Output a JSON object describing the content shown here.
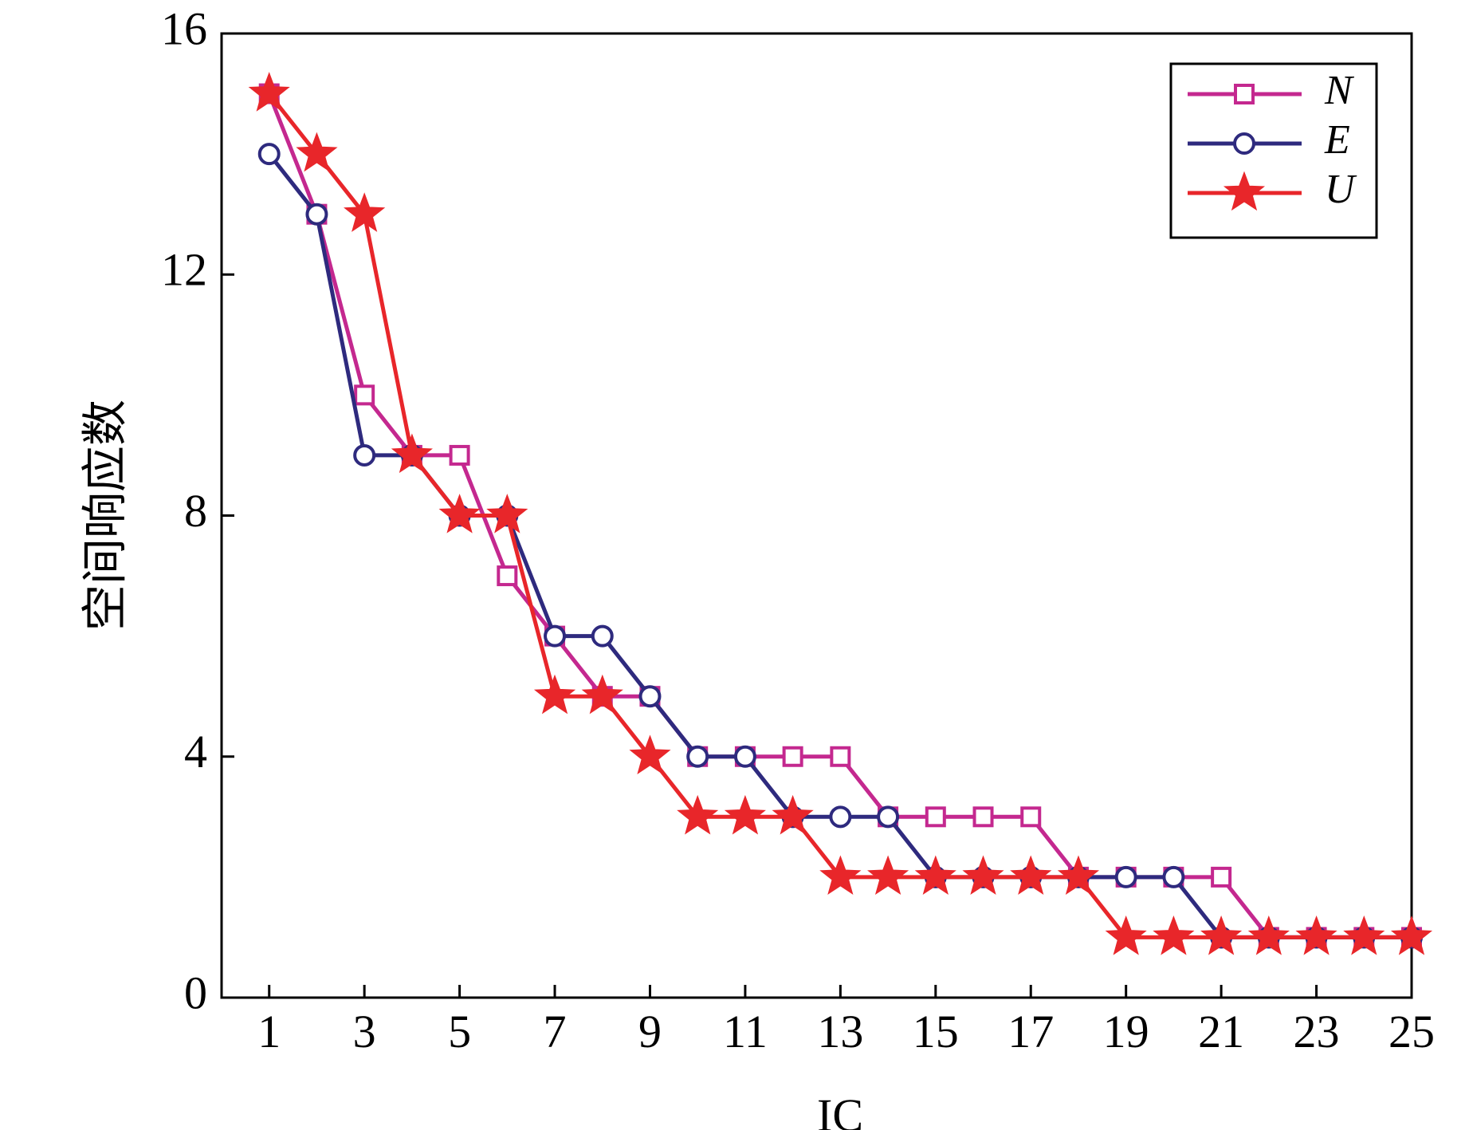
{
  "chart_data": {
    "type": "line",
    "xlabel": "IC",
    "ylabel": "空间响应数",
    "xlim": [
      0,
      25
    ],
    "ylim": [
      0,
      16
    ],
    "x_ticks": [
      1,
      3,
      5,
      7,
      9,
      11,
      13,
      15,
      17,
      19,
      21,
      23,
      25
    ],
    "y_ticks": [
      0,
      4,
      8,
      12,
      16
    ],
    "legend_position": "top-right",
    "grid": false,
    "x": [
      1,
      2,
      3,
      4,
      5,
      6,
      7,
      8,
      9,
      10,
      11,
      12,
      13,
      14,
      15,
      16,
      17,
      18,
      19,
      20,
      21,
      22,
      23,
      24,
      25
    ],
    "series": [
      {
        "name": "N",
        "color": "#c4288f",
        "marker": "square",
        "values": [
          15,
          13,
          10,
          9,
          9,
          7,
          6,
          5,
          5,
          4,
          4,
          4,
          4,
          3,
          3,
          3,
          3,
          2,
          2,
          2,
          2,
          1,
          1,
          1,
          1
        ]
      },
      {
        "name": "E",
        "color": "#2e2a7e",
        "marker": "circle",
        "values": [
          14,
          13,
          9,
          9,
          8,
          8,
          6,
          6,
          5,
          4,
          4,
          3,
          3,
          3,
          2,
          2,
          2,
          2,
          2,
          2,
          1,
          1,
          1,
          1,
          1
        ]
      },
      {
        "name": "U",
        "color": "#e8262a",
        "marker": "star",
        "values": [
          15,
          14,
          13,
          9,
          8,
          8,
          5,
          5,
          4,
          3,
          3,
          3,
          2,
          2,
          2,
          2,
          2,
          2,
          1,
          1,
          1,
          1,
          1,
          1,
          1
        ]
      }
    ]
  }
}
